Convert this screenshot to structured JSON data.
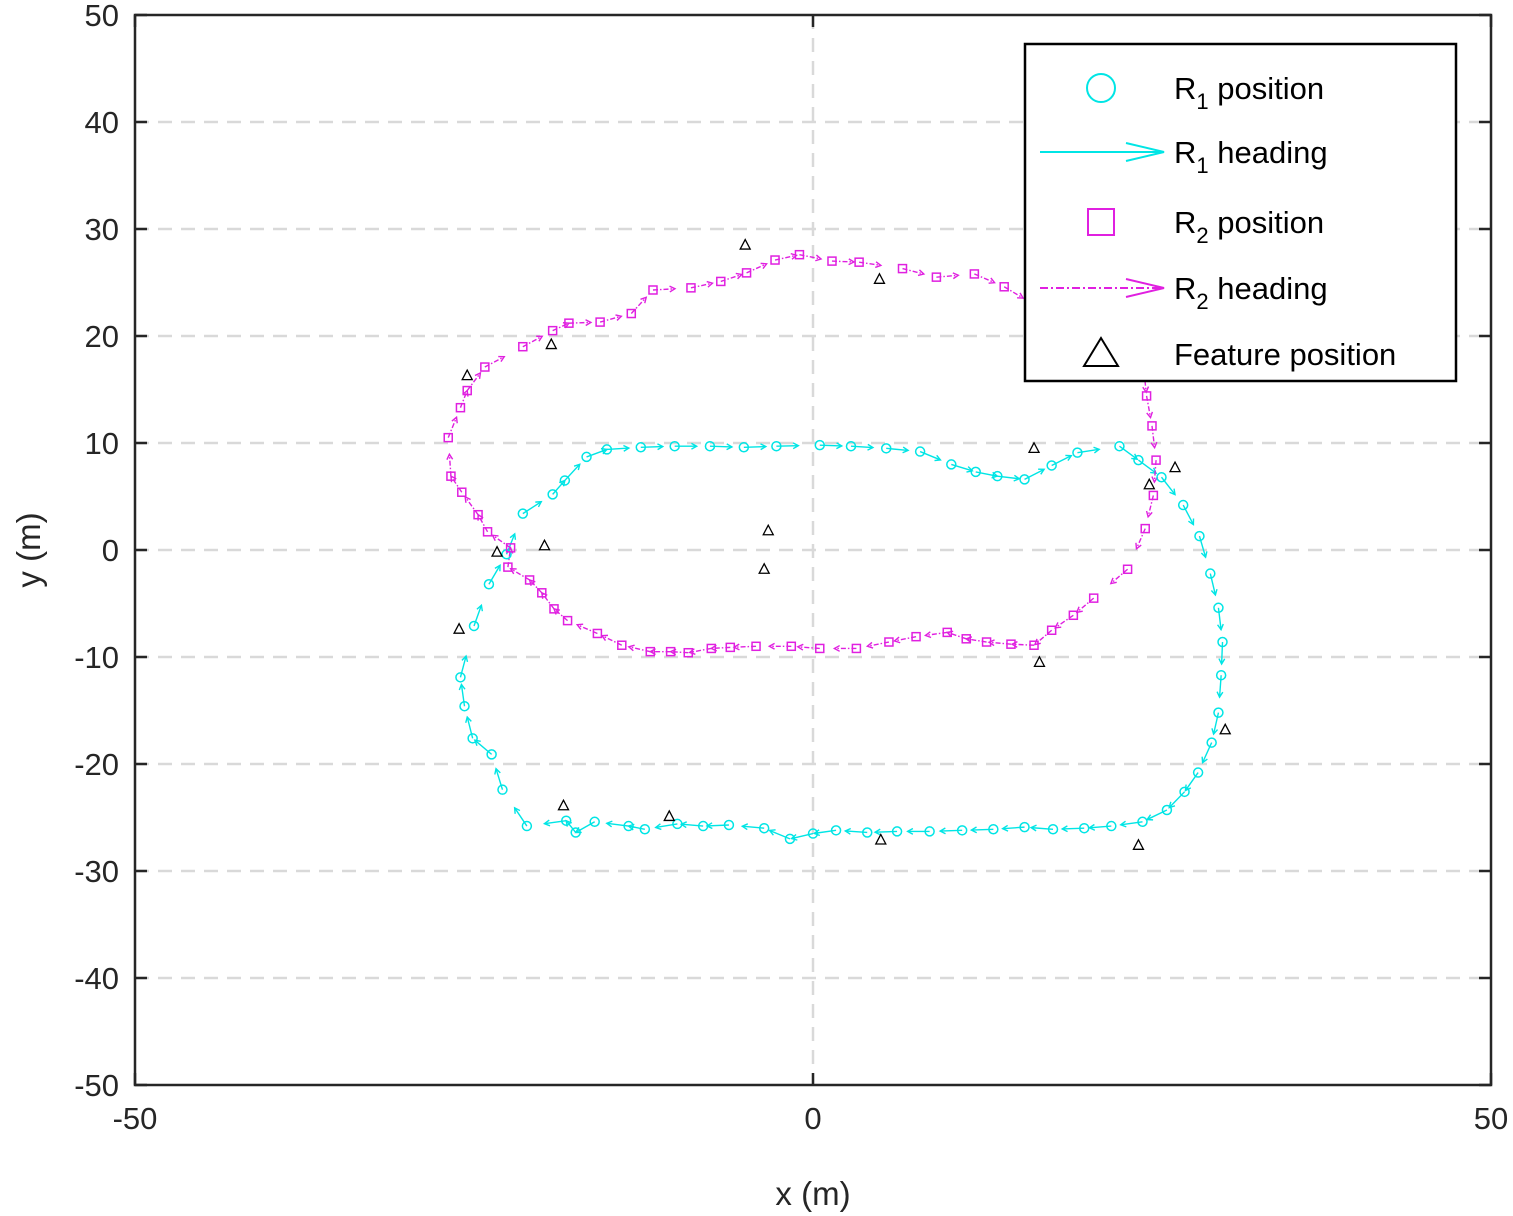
{
  "chart_data": {
    "type": "scatter",
    "xlabel": "x (m)",
    "ylabel": "y (m)",
    "xlim": [
      -50,
      50
    ],
    "ylim": [
      -50,
      50
    ],
    "xticks": [
      -50,
      0,
      50
    ],
    "yticks": [
      -50,
      -40,
      -30,
      -20,
      -10,
      0,
      10,
      20,
      30,
      40,
      50
    ],
    "xtick_labels": [
      "-50",
      "0",
      "50"
    ],
    "ytick_labels": [
      "-50",
      "-40",
      "-30",
      "-20",
      "-10",
      "0",
      "10",
      "20",
      "30",
      "40",
      "50"
    ],
    "grid": "dashed",
    "legend_position": "top-right",
    "colors": {
      "r1": "#00e5e5",
      "r2": "#e020e0",
      "feature": "#000000",
      "grid": "#d9d9d9",
      "axes": "#262626"
    },
    "legend": [
      {
        "key": "r1_pos",
        "main": "R",
        "sub": "1",
        "rest": " position",
        "marker": "circle"
      },
      {
        "key": "r1_head",
        "main": "R",
        "sub": "1",
        "rest": " heading",
        "marker": "arrow-solid"
      },
      {
        "key": "r2_pos",
        "main": "R",
        "sub": "2",
        "rest": " position",
        "marker": "square"
      },
      {
        "key": "r2_head",
        "main": "R",
        "sub": "2",
        "rest": " heading",
        "marker": "arrow-dashdot"
      },
      {
        "key": "feature",
        "main": "Feature position",
        "sub": "",
        "rest": "",
        "marker": "triangle"
      }
    ],
    "series": [
      {
        "name": "R1 position",
        "marker": "circle",
        "points": [
          [
            0.5,
            9.8
          ],
          [
            2.8,
            9.7
          ],
          [
            5.4,
            9.5
          ],
          [
            7.9,
            9.2
          ],
          [
            10.2,
            8.0
          ],
          [
            12.0,
            7.3
          ],
          [
            13.6,
            6.9
          ],
          [
            15.6,
            6.6
          ],
          [
            17.6,
            7.9
          ],
          [
            19.5,
            9.1
          ],
          [
            22.6,
            9.7
          ],
          [
            24.0,
            8.4
          ],
          [
            25.7,
            6.8
          ],
          [
            27.3,
            4.2
          ],
          [
            28.5,
            1.3
          ],
          [
            29.3,
            -2.2
          ],
          [
            29.9,
            -5.4
          ],
          [
            30.2,
            -8.6
          ],
          [
            30.1,
            -11.7
          ],
          [
            29.9,
            -15.2
          ],
          [
            29.4,
            -18.0
          ],
          [
            28.4,
            -20.8
          ],
          [
            27.4,
            -22.6
          ],
          [
            26.1,
            -24.3
          ],
          [
            24.3,
            -25.4
          ],
          [
            22.0,
            -25.8
          ],
          [
            20.0,
            -26.0
          ],
          [
            17.7,
            -26.1
          ],
          [
            15.6,
            -25.9
          ],
          [
            13.3,
            -26.1
          ],
          [
            11.0,
            -26.2
          ],
          [
            8.6,
            -26.3
          ],
          [
            6.2,
            -26.3
          ],
          [
            4.0,
            -26.4
          ],
          [
            1.7,
            -26.2
          ],
          [
            0.0,
            -26.5
          ],
          [
            -1.7,
            -27.0
          ],
          [
            -3.6,
            -26.0
          ],
          [
            -6.2,
            -25.7
          ],
          [
            -8.1,
            -25.8
          ],
          [
            -10.0,
            -25.6
          ],
          [
            -12.4,
            -26.1
          ],
          [
            -13.6,
            -25.8
          ],
          [
            -16.1,
            -25.4
          ],
          [
            -17.5,
            -26.4
          ],
          [
            -18.2,
            -25.3
          ],
          [
            -21.1,
            -25.8
          ],
          [
            -22.9,
            -22.4
          ],
          [
            -23.7,
            -19.1
          ],
          [
            -25.1,
            -17.6
          ],
          [
            -25.7,
            -14.6
          ],
          [
            -26.0,
            -11.9
          ],
          [
            -25.0,
            -7.1
          ],
          [
            -23.9,
            -3.2
          ],
          [
            -22.6,
            -0.4
          ],
          [
            -21.4,
            3.4
          ],
          [
            -19.2,
            5.2
          ],
          [
            -18.3,
            6.5
          ],
          [
            -16.7,
            8.7
          ],
          [
            -15.2,
            9.4
          ],
          [
            -12.7,
            9.6
          ],
          [
            -10.2,
            9.7
          ],
          [
            -7.6,
            9.7
          ],
          [
            -5.1,
            9.6
          ],
          [
            -2.7,
            9.7
          ]
        ]
      },
      {
        "name": "R2 position",
        "marker": "square",
        "points": [
          [
            -1.0,
            27.6
          ],
          [
            1.4,
            27.0
          ],
          [
            3.4,
            26.9
          ],
          [
            6.6,
            26.3
          ],
          [
            9.1,
            25.5
          ],
          [
            11.9,
            25.8
          ],
          [
            14.1,
            24.6
          ],
          [
            24.4,
            16.8
          ],
          [
            24.6,
            14.4
          ],
          [
            25.0,
            11.6
          ],
          [
            25.3,
            8.4
          ],
          [
            25.1,
            5.1
          ],
          [
            24.5,
            2.0
          ],
          [
            23.2,
            -1.8
          ],
          [
            20.7,
            -4.5
          ],
          [
            19.2,
            -6.1
          ],
          [
            17.6,
            -7.5
          ],
          [
            16.3,
            -8.9
          ],
          [
            14.6,
            -8.8
          ],
          [
            12.8,
            -8.6
          ],
          [
            11.3,
            -8.3
          ],
          [
            9.9,
            -7.7
          ],
          [
            7.6,
            -8.1
          ],
          [
            5.6,
            -8.6
          ],
          [
            3.2,
            -9.2
          ],
          [
            0.5,
            -9.2
          ],
          [
            -1.6,
            -9.0
          ],
          [
            -4.2,
            -9.0
          ],
          [
            -6.1,
            -9.1
          ],
          [
            -7.5,
            -9.2
          ],
          [
            -9.2,
            -9.6
          ],
          [
            -10.5,
            -9.5
          ],
          [
            -12.0,
            -9.5
          ],
          [
            -14.1,
            -8.9
          ],
          [
            -15.9,
            -7.8
          ],
          [
            -18.1,
            -6.6
          ],
          [
            -19.1,
            -5.5
          ],
          [
            -20.0,
            -4.0
          ],
          [
            -20.9,
            -2.8
          ],
          [
            -22.5,
            -1.6
          ],
          [
            -22.3,
            0.2
          ],
          [
            -24.0,
            1.7
          ],
          [
            -24.7,
            3.3
          ],
          [
            -25.9,
            5.4
          ],
          [
            -26.7,
            6.9
          ],
          [
            -26.9,
            10.5
          ],
          [
            -26.0,
            13.3
          ],
          [
            -25.5,
            14.9
          ],
          [
            -24.2,
            17.1
          ],
          [
            -21.4,
            19.0
          ],
          [
            -19.2,
            20.5
          ],
          [
            -18.0,
            21.2
          ],
          [
            -15.7,
            21.3
          ],
          [
            -13.4,
            22.1
          ],
          [
            -11.8,
            24.3
          ],
          [
            -9.0,
            24.5
          ],
          [
            -6.8,
            25.1
          ],
          [
            -4.9,
            25.9
          ],
          [
            -2.8,
            27.1
          ]
        ]
      },
      {
        "name": "Feature position",
        "marker": "triangle",
        "points": [
          [
            -5.0,
            28.5
          ],
          [
            4.9,
            25.3
          ],
          [
            -19.3,
            19.2
          ],
          [
            -25.5,
            16.3
          ],
          [
            16.3,
            9.5
          ],
          [
            26.7,
            7.7
          ],
          [
            24.8,
            6.1
          ],
          [
            -3.3,
            1.8
          ],
          [
            -19.8,
            0.4
          ],
          [
            -23.3,
            -0.2
          ],
          [
            -3.6,
            -1.8
          ],
          [
            -26.1,
            -7.4
          ],
          [
            16.7,
            -10.5
          ],
          [
            30.4,
            -16.8
          ],
          [
            -18.4,
            -23.9
          ],
          [
            -10.6,
            -24.9
          ],
          [
            5.0,
            -27.1
          ],
          [
            24.0,
            -27.6
          ]
        ]
      }
    ]
  }
}
